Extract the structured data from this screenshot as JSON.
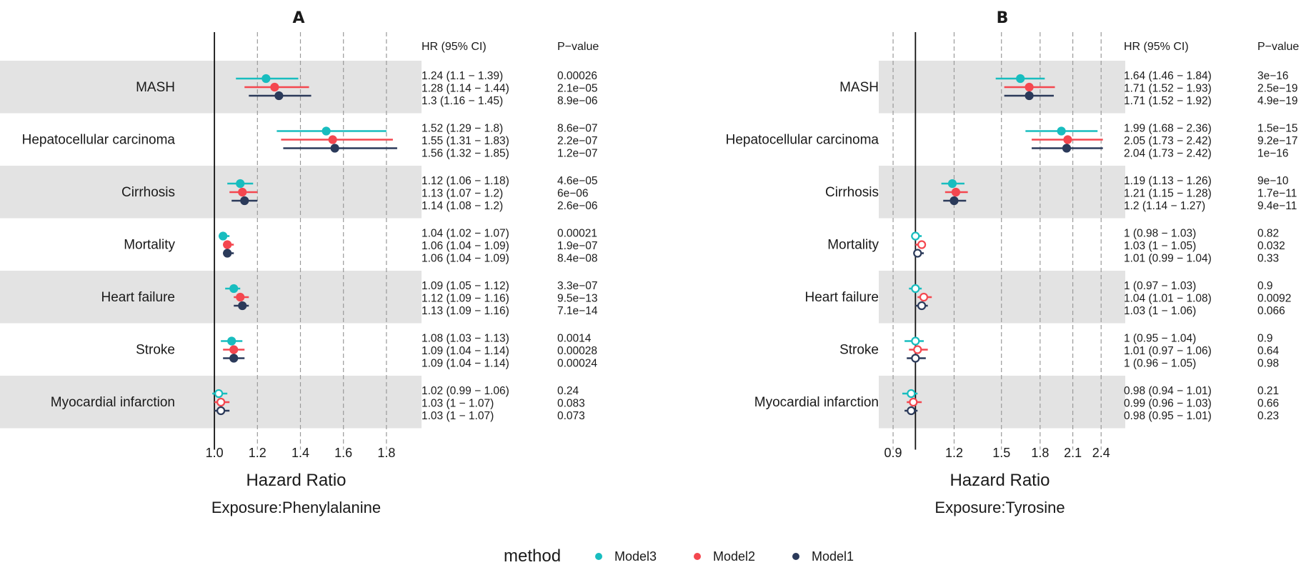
{
  "legend": {
    "title": "method",
    "items": [
      {
        "name": "Model3",
        "color": "#18BDBF"
      },
      {
        "name": "Model2",
        "color": "#F4474F"
      },
      {
        "name": "Model1",
        "color": "#2B3A5A"
      }
    ]
  },
  "chart_data": [
    {
      "type": "forest",
      "panel_label": "A",
      "xlabel": "Hazard Ratio",
      "subtitle": "Exposure:Phenylalanine",
      "col_hr": "HR (95% CI)",
      "col_p": "P−value",
      "xlim": [
        0.85,
        1.93
      ],
      "xticks": [
        1.0,
        1.2,
        1.4,
        1.6,
        1.8
      ],
      "xtick_labels": [
        "1.0",
        "1.2",
        "1.4",
        "1.6",
        "1.8"
      ],
      "reference": 1.0,
      "scale": "linear",
      "shaded_rows": [
        0,
        2,
        4,
        6
      ],
      "outcomes": [
        {
          "name": "MASH",
          "models": [
            {
              "model": "Model3",
              "hr": 1.24,
              "lo": 1.1,
              "hi": 1.39,
              "label": "1.24 (1.1 − 1.39)",
              "p": "0.00026",
              "sig": true
            },
            {
              "model": "Model2",
              "hr": 1.28,
              "lo": 1.14,
              "hi": 1.44,
              "label": "1.28 (1.14 − 1.44)",
              "p": "2.1e−05",
              "sig": true
            },
            {
              "model": "Model1",
              "hr": 1.3,
              "lo": 1.16,
              "hi": 1.45,
              "label": "1.3 (1.16 − 1.45)",
              "p": "8.9e−06",
              "sig": true
            }
          ]
        },
        {
          "name": "Hepatocellular carcinoma",
          "models": [
            {
              "model": "Model3",
              "hr": 1.52,
              "lo": 1.29,
              "hi": 1.8,
              "label": "1.52 (1.29 − 1.8)",
              "p": "8.6e−07",
              "sig": true
            },
            {
              "model": "Model2",
              "hr": 1.55,
              "lo": 1.31,
              "hi": 1.83,
              "label": "1.55 (1.31 − 1.83)",
              "p": "2.2e−07",
              "sig": true
            },
            {
              "model": "Model1",
              "hr": 1.56,
              "lo": 1.32,
              "hi": 1.85,
              "label": "1.56 (1.32 − 1.85)",
              "p": "1.2e−07",
              "sig": true
            }
          ]
        },
        {
          "name": "Cirrhosis",
          "models": [
            {
              "model": "Model3",
              "hr": 1.12,
              "lo": 1.06,
              "hi": 1.18,
              "label": "1.12 (1.06 − 1.18)",
              "p": "4.6e−05",
              "sig": true
            },
            {
              "model": "Model2",
              "hr": 1.13,
              "lo": 1.07,
              "hi": 1.2,
              "label": "1.13 (1.07 − 1.2)",
              "p": "6e−06",
              "sig": true
            },
            {
              "model": "Model1",
              "hr": 1.14,
              "lo": 1.08,
              "hi": 1.2,
              "label": "1.14 (1.08 − 1.2)",
              "p": "2.6e−06",
              "sig": true
            }
          ]
        },
        {
          "name": "Mortality",
          "models": [
            {
              "model": "Model3",
              "hr": 1.04,
              "lo": 1.02,
              "hi": 1.07,
              "label": "1.04 (1.02 − 1.07)",
              "p": "0.00021",
              "sig": true
            },
            {
              "model": "Model2",
              "hr": 1.06,
              "lo": 1.04,
              "hi": 1.09,
              "label": "1.06 (1.04 − 1.09)",
              "p": "1.9e−07",
              "sig": true
            },
            {
              "model": "Model1",
              "hr": 1.06,
              "lo": 1.04,
              "hi": 1.09,
              "label": "1.06 (1.04 − 1.09)",
              "p": "8.4e−08",
              "sig": true
            }
          ]
        },
        {
          "name": "Heart failure",
          "models": [
            {
              "model": "Model3",
              "hr": 1.09,
              "lo": 1.05,
              "hi": 1.12,
              "label": "1.09 (1.05 − 1.12)",
              "p": "3.3e−07",
              "sig": true
            },
            {
              "model": "Model2",
              "hr": 1.12,
              "lo": 1.09,
              "hi": 1.16,
              "label": "1.12 (1.09 − 1.16)",
              "p": "9.5e−13",
              "sig": true
            },
            {
              "model": "Model1",
              "hr": 1.13,
              "lo": 1.09,
              "hi": 1.16,
              "label": "1.13 (1.09 − 1.16)",
              "p": "7.1e−14",
              "sig": true
            }
          ]
        },
        {
          "name": "Stroke",
          "models": [
            {
              "model": "Model3",
              "hr": 1.08,
              "lo": 1.03,
              "hi": 1.13,
              "label": "1.08 (1.03 − 1.13)",
              "p": "0.0014",
              "sig": true
            },
            {
              "model": "Model2",
              "hr": 1.09,
              "lo": 1.04,
              "hi": 1.14,
              "label": "1.09 (1.04 − 1.14)",
              "p": "0.00028",
              "sig": true
            },
            {
              "model": "Model1",
              "hr": 1.09,
              "lo": 1.04,
              "hi": 1.14,
              "label": "1.09 (1.04 − 1.14)",
              "p": "0.00024",
              "sig": true
            }
          ]
        },
        {
          "name": "Myocardial infarction",
          "models": [
            {
              "model": "Model3",
              "hr": 1.02,
              "lo": 0.99,
              "hi": 1.06,
              "label": "1.02 (0.99 − 1.06)",
              "p": "0.24",
              "sig": false
            },
            {
              "model": "Model2",
              "hr": 1.03,
              "lo": 1.0,
              "hi": 1.07,
              "label": "1.03 (1 − 1.07)",
              "p": "0.083",
              "sig": false
            },
            {
              "model": "Model1",
              "hr": 1.03,
              "lo": 1.0,
              "hi": 1.07,
              "label": "1.03 (1 − 1.07)",
              "p": "0.073",
              "sig": false
            }
          ]
        }
      ]
    },
    {
      "type": "forest",
      "panel_label": "B",
      "xlabel": "Hazard Ratio",
      "subtitle": "Exposure:Tyrosine",
      "col_hr": "HR (95% CI)",
      "col_p": "P−value",
      "xlim": [
        0.87,
        2.6
      ],
      "xticks": [
        0.9,
        1.2,
        1.5,
        1.8,
        2.1,
        2.4
      ],
      "xtick_labels": [
        "0.9",
        "1.2",
        "1.5",
        "1.8",
        "2.1",
        "2.4"
      ],
      "reference": 1.0,
      "scale": "log",
      "shaded_rows": [
        0,
        2,
        4,
        6
      ],
      "outcomes": [
        {
          "name": "MASH",
          "models": [
            {
              "model": "Model3",
              "hr": 1.64,
              "lo": 1.46,
              "hi": 1.84,
              "label": "1.64 (1.46 − 1.84)",
              "p": "3e−16",
              "sig": true
            },
            {
              "model": "Model2",
              "hr": 1.71,
              "lo": 1.52,
              "hi": 1.93,
              "label": "1.71 (1.52 − 1.93)",
              "p": "2.5e−19",
              "sig": true
            },
            {
              "model": "Model1",
              "hr": 1.71,
              "lo": 1.52,
              "hi": 1.92,
              "label": "1.71 (1.52 − 1.92)",
              "p": "4.9e−19",
              "sig": true
            }
          ]
        },
        {
          "name": "Hepatocellular carcinoma",
          "models": [
            {
              "model": "Model3",
              "hr": 1.99,
              "lo": 1.68,
              "hi": 2.36,
              "label": "1.99 (1.68 − 2.36)",
              "p": "1.5e−15",
              "sig": true
            },
            {
              "model": "Model2",
              "hr": 2.05,
              "lo": 1.73,
              "hi": 2.42,
              "label": "2.05 (1.73 − 2.42)",
              "p": "9.2e−17",
              "sig": true
            },
            {
              "model": "Model1",
              "hr": 2.04,
              "lo": 1.73,
              "hi": 2.42,
              "label": "2.04 (1.73 − 2.42)",
              "p": "1e−16",
              "sig": true
            }
          ]
        },
        {
          "name": "Cirrhosis",
          "models": [
            {
              "model": "Model3",
              "hr": 1.19,
              "lo": 1.13,
              "hi": 1.26,
              "label": "1.19 (1.13 − 1.26)",
              "p": "9e−10",
              "sig": true
            },
            {
              "model": "Model2",
              "hr": 1.21,
              "lo": 1.15,
              "hi": 1.28,
              "label": "1.21 (1.15 − 1.28)",
              "p": "1.7e−11",
              "sig": true
            },
            {
              "model": "Model1",
              "hr": 1.2,
              "lo": 1.14,
              "hi": 1.27,
              "label": "1.2 (1.14 − 1.27)",
              "p": "9.4e−11",
              "sig": true
            }
          ]
        },
        {
          "name": "Mortality",
          "models": [
            {
              "model": "Model3",
              "hr": 1.0,
              "lo": 0.98,
              "hi": 1.03,
              "label": "1 (0.98 − 1.03)",
              "p": "0.82",
              "sig": false
            },
            {
              "model": "Model2",
              "hr": 1.03,
              "lo": 1.0,
              "hi": 1.05,
              "label": "1.03 (1 − 1.05)",
              "p": "0.032",
              "sig": false
            },
            {
              "model": "Model1",
              "hr": 1.01,
              "lo": 0.99,
              "hi": 1.04,
              "label": "1.01 (0.99 − 1.04)",
              "p": "0.33",
              "sig": false
            }
          ]
        },
        {
          "name": "Heart failure",
          "models": [
            {
              "model": "Model3",
              "hr": 1.0,
              "lo": 0.97,
              "hi": 1.03,
              "label": "1 (0.97 − 1.03)",
              "p": "0.9",
              "sig": false
            },
            {
              "model": "Model2",
              "hr": 1.04,
              "lo": 1.01,
              "hi": 1.08,
              "label": "1.04 (1.01 − 1.08)",
              "p": "0.0092",
              "sig": false
            },
            {
              "model": "Model1",
              "hr": 1.03,
              "lo": 1.0,
              "hi": 1.06,
              "label": "1.03 (1 − 1.06)",
              "p": "0.066",
              "sig": false
            }
          ]
        },
        {
          "name": "Stroke",
          "models": [
            {
              "model": "Model3",
              "hr": 1.0,
              "lo": 0.95,
              "hi": 1.04,
              "label": "1 (0.95 − 1.04)",
              "p": "0.9",
              "sig": false
            },
            {
              "model": "Model2",
              "hr": 1.01,
              "lo": 0.97,
              "hi": 1.06,
              "label": "1.01 (0.97 − 1.06)",
              "p": "0.64",
              "sig": false
            },
            {
              "model": "Model1",
              "hr": 1.0,
              "lo": 0.96,
              "hi": 1.05,
              "label": "1 (0.96 − 1.05)",
              "p": "0.98",
              "sig": false
            }
          ]
        },
        {
          "name": "Myocardial infarction",
          "models": [
            {
              "model": "Model3",
              "hr": 0.98,
              "lo": 0.94,
              "hi": 1.01,
              "label": "0.98 (0.94 − 1.01)",
              "p": "0.21",
              "sig": false
            },
            {
              "model": "Model2",
              "hr": 0.99,
              "lo": 0.96,
              "hi": 1.03,
              "label": "0.99 (0.96 − 1.03)",
              "p": "0.66",
              "sig": false
            },
            {
              "model": "Model1",
              "hr": 0.98,
              "lo": 0.95,
              "hi": 1.01,
              "label": "0.98 (0.95 − 1.01)",
              "p": "0.23",
              "sig": false
            }
          ]
        }
      ]
    }
  ]
}
